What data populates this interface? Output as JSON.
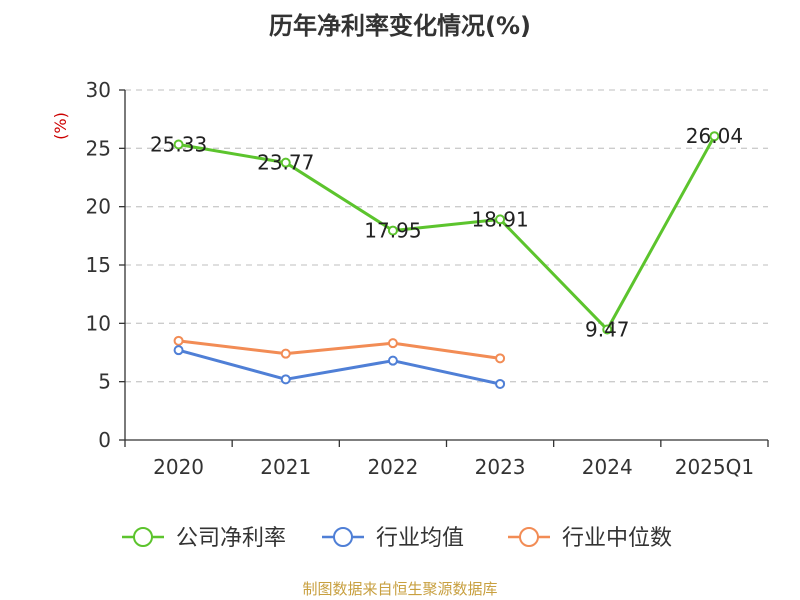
{
  "chart_data": {
    "type": "line",
    "title": "历年净利率变化情况(%)",
    "ylabel": "(%)",
    "xlabel": "",
    "categories": [
      "2020",
      "2021",
      "2022",
      "2023",
      "2024",
      "2025Q1"
    ],
    "ylim": [
      0,
      30
    ],
    "yticks": [
      "0",
      "5",
      "10",
      "15",
      "20",
      "25",
      "30"
    ],
    "grid": "horizontal-dashed",
    "legend_position": "bottom",
    "series": [
      {
        "name": "公司净利率",
        "color": "#5cc42d",
        "values": [
          25.33,
          23.77,
          17.95,
          18.91,
          9.47,
          26.04
        ],
        "labels": [
          "25.33",
          "23.77",
          "17.95",
          "18.91",
          "9.47",
          "26.04"
        ]
      },
      {
        "name": "行业均值",
        "color": "#4f7fd6",
        "values": [
          7.7,
          5.2,
          6.8,
          4.8,
          null,
          null
        ]
      },
      {
        "name": "行业中位数",
        "color": "#f28c55",
        "values": [
          8.5,
          7.4,
          8.3,
          7.0,
          null,
          null
        ]
      }
    ]
  },
  "source": "制图数据来自恒生聚源数据库",
  "colors": {
    "ylabel": "#cc0000",
    "axis": "#333333",
    "grid": "#cccccc",
    "source": "#c8a040"
  }
}
